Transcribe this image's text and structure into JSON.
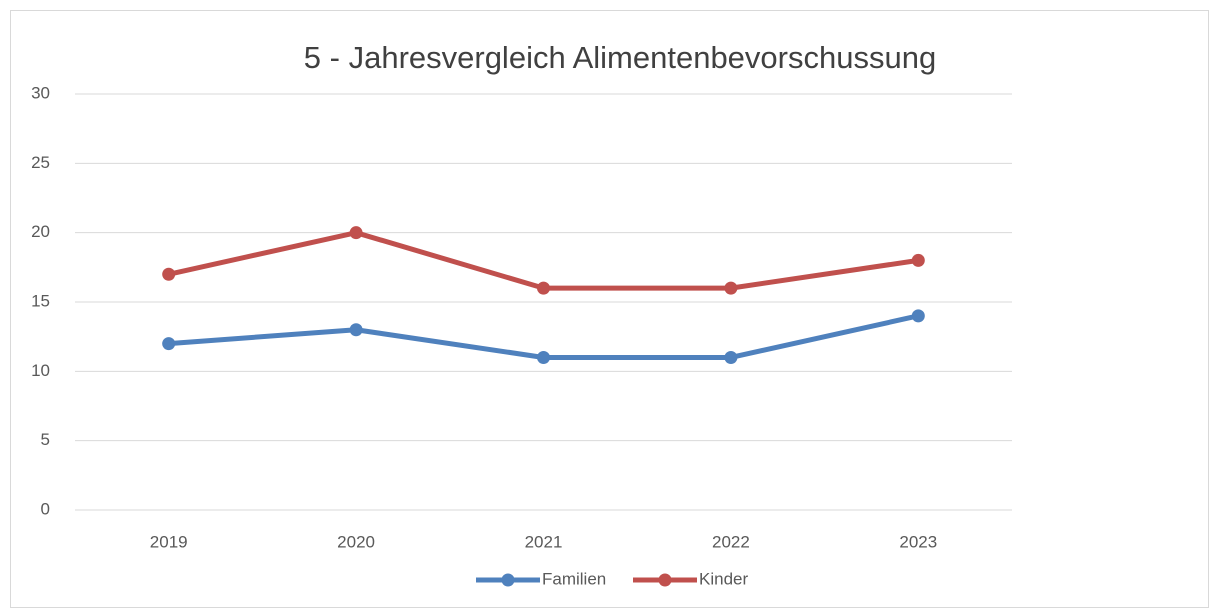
{
  "chart_data": {
    "type": "line",
    "title": "5 - Jahresvergleich Alimentenbevorschussung",
    "categories": [
      "2019",
      "2020",
      "2021",
      "2022",
      "2023"
    ],
    "series": [
      {
        "name": "Familien",
        "color": "#4f81bd",
        "values": [
          12,
          13,
          11,
          11,
          14
        ]
      },
      {
        "name": "Kinder",
        "color": "#c0504d",
        "values": [
          17,
          20,
          16,
          16,
          18
        ]
      }
    ],
    "ylim": [
      0,
      30
    ],
    "yticks": [
      0,
      5,
      10,
      15,
      20,
      25,
      30
    ],
    "grid": true,
    "legend": "bottom"
  }
}
